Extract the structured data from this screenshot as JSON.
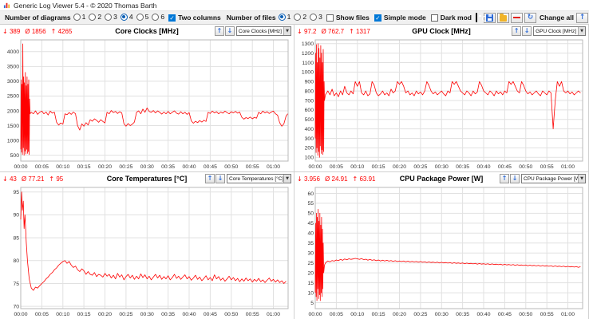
{
  "window": {
    "title": "Generic Log Viewer 5.4  -  © 2020 Thomas Barth"
  },
  "icons": {
    "min": "↓",
    "avg": "Ø",
    "max": "↑",
    "up": "↑",
    "down": "↓",
    "dropdown": "▼",
    "refresh": "↻",
    "check": "✓"
  },
  "colors": {
    "accent_blue": "#2e6bd6",
    "checkbox_blue": "#0078d7",
    "series_red": "#fe0000"
  },
  "toolbar": {
    "diagrams_label": "Number of diagrams",
    "diagram_options": [
      "1",
      "2",
      "3",
      "4",
      "5",
      "6"
    ],
    "diagrams_selected": "4",
    "two_columns": true,
    "two_columns_label": "Two columns",
    "files_label": "Number of files",
    "file_options": [
      "1",
      "2",
      "3"
    ],
    "files_selected": "1",
    "show_files": false,
    "show_files_label": "Show files",
    "simple_mode": true,
    "simple_mode_label": "Simple mode",
    "dark_mode": false,
    "dark_mode_label": "Dark mod",
    "change_all_label": "Change all"
  },
  "time_axis": {
    "ticks": [
      0,
      5,
      10,
      15,
      20,
      25,
      30,
      35,
      40,
      45,
      50,
      55,
      60
    ],
    "labels": [
      "00:00",
      "00:05",
      "00:10",
      "00:15",
      "00:20",
      "00:25",
      "00:30",
      "00:35",
      "00:40",
      "00:45",
      "00:50",
      "00:55",
      "01:00"
    ]
  },
  "chart_data": [
    {
      "type": "line",
      "title": "Core Clocks [MHz]",
      "selector": "Core Clocks [MHz]",
      "stats": {
        "min": "389",
        "avg": "1856",
        "max": "4265"
      },
      "color": "#fe0000",
      "ylim": [
        300,
        4400
      ],
      "yticks": [
        500,
        1000,
        1500,
        2000,
        2500,
        3000,
        3500,
        4000
      ],
      "xlim": [
        0,
        63.5
      ],
      "points": [
        0,
        700,
        0.1,
        3050,
        0.2,
        600,
        0.3,
        2900,
        0.4,
        520,
        0.5,
        4265,
        0.6,
        750,
        0.7,
        3150,
        0.8,
        500,
        0.9,
        2950,
        1,
        640,
        1.1,
        3300,
        1.2,
        540,
        1.3,
        2850,
        1.4,
        700,
        1.5,
        3150,
        1.6,
        560,
        1.7,
        2900,
        1.8,
        620,
        1.9,
        3050,
        2,
        520,
        2.1,
        2400,
        2.2,
        1900,
        2.5,
        1950,
        3,
        1900,
        3.5,
        2000,
        4,
        1880,
        4.5,
        1950,
        5,
        1990,
        5.5,
        1900,
        6,
        1960,
        6.5,
        1860,
        7,
        1990,
        7.5,
        1920,
        8,
        1950,
        8.5,
        1620,
        9,
        1520,
        9.5,
        1590,
        10,
        1550,
        10.5,
        1900,
        11,
        1870,
        11.5,
        1940,
        12,
        1880,
        12.5,
        1960,
        13,
        1900,
        13.5,
        1500,
        14,
        1350,
        14.5,
        1560,
        15,
        1480,
        15.5,
        1600,
        16,
        1520,
        16.5,
        1700,
        17,
        1650,
        17.5,
        1730,
        18,
        1680,
        18.5,
        1610,
        19,
        1700,
        19.5,
        1640,
        20,
        1590,
        20.5,
        1950,
        21,
        1900,
        21.5,
        2010,
        22,
        1940,
        22.5,
        1980,
        23,
        1910,
        23.5,
        1970,
        24,
        1930,
        24.5,
        1560,
        25,
        1480,
        25.5,
        1570,
        26,
        1500,
        26.5,
        1550,
        27,
        1620,
        27.5,
        1950,
        28,
        2000,
        28.5,
        1900,
        29,
        2060,
        29.5,
        1950,
        30,
        2100,
        30.5,
        1980,
        31,
        1950,
        31.5,
        2010,
        32,
        1930,
        32.5,
        2000,
        33,
        1950,
        33.5,
        1890,
        34,
        1960,
        34.5,
        1900,
        35,
        1980,
        35.5,
        1900,
        36,
        1950,
        36.5,
        2000,
        37,
        1920,
        37.5,
        1890,
        38,
        1970,
        38.5,
        1900,
        39,
        1950,
        39.5,
        1880,
        40,
        1940,
        40.5,
        1660,
        41,
        1580,
        41.5,
        1650,
        42,
        1600,
        42.5,
        1670,
        43,
        1620,
        43.5,
        1680,
        44,
        1640,
        44.5,
        1950,
        45,
        1910,
        45.5,
        1990,
        46,
        1930,
        46.5,
        1970,
        47,
        1900,
        47.5,
        1960,
        48,
        1920,
        48.5,
        1990,
        49,
        1940,
        49.5,
        1900,
        50,
        1970,
        50.5,
        1930,
        51,
        1980,
        51.5,
        1920,
        52,
        1960,
        52.5,
        1780,
        53,
        1720,
        53.5,
        1770,
        54,
        1740,
        54.5,
        1790,
        55,
        1730,
        55.5,
        1780,
        56,
        1750,
        56.5,
        1950,
        57,
        1900,
        57.5,
        1990,
        58,
        1930,
        58.5,
        1970,
        59,
        1910,
        59.5,
        1960,
        60,
        1990,
        60.5,
        1900,
        61,
        1850,
        61.5,
        1600,
        62,
        1480,
        62.5,
        1560,
        63,
        1820,
        63.4,
        1900
      ]
    },
    {
      "type": "line",
      "title": "GPU Clock [MHz]",
      "selector": "GPU Clock [MHz]",
      "stats": {
        "min": "97.2",
        "avg": "762.7",
        "max": "1317"
      },
      "color": "#fe0000",
      "ylim": [
        60,
        1340
      ],
      "yticks": [
        100,
        200,
        300,
        400,
        500,
        600,
        700,
        800,
        900,
        1000,
        1100,
        1200,
        1300
      ],
      "xlim": [
        0,
        63.5
      ],
      "points": [
        0,
        300,
        0.1,
        1200,
        0.2,
        150,
        0.3,
        1290,
        0.4,
        200,
        0.5,
        1100,
        0.6,
        120,
        0.7,
        1300,
        0.8,
        160,
        0.9,
        1250,
        1,
        100,
        1.1,
        1150,
        1.2,
        220,
        1.3,
        1280,
        1.4,
        140,
        1.5,
        1200,
        1.6,
        180,
        1.7,
        1100,
        1.8,
        130,
        1.9,
        1240,
        2,
        160,
        2.1,
        900,
        2.2,
        700,
        2.4,
        760,
        3,
        800,
        3.5,
        760,
        4,
        820,
        4.5,
        750,
        5,
        780,
        5.5,
        740,
        6,
        800,
        6.5,
        760,
        7,
        850,
        7.5,
        780,
        8,
        760,
        8.5,
        800,
        9,
        770,
        9.5,
        900,
        10,
        850,
        10.5,
        900,
        11,
        780,
        11.5,
        760,
        12,
        800,
        12.5,
        750,
        13,
        770,
        13.5,
        900,
        14,
        860,
        14.5,
        780,
        15,
        750,
        15.5,
        770,
        16,
        800,
        16.5,
        760,
        17,
        780,
        17.5,
        750,
        18,
        820,
        18.5,
        780,
        19,
        800,
        19.5,
        900,
        20,
        870,
        20.5,
        900,
        21,
        850,
        21.5,
        780,
        22,
        800,
        22.5,
        760,
        23,
        780,
        23.5,
        750,
        24,
        800,
        24.5,
        770,
        25,
        790,
        25.5,
        760,
        26,
        800,
        26.5,
        900,
        27,
        860,
        27.5,
        800,
        28,
        770,
        28.5,
        790,
        29,
        760,
        29.5,
        780,
        30,
        800,
        30.5,
        770,
        31,
        750,
        31.5,
        800,
        32,
        780,
        32.5,
        900,
        33,
        870,
        33.5,
        900,
        34,
        850,
        34.5,
        800,
        35,
        780,
        35.5,
        760,
        36,
        800,
        36.5,
        780,
        37,
        750,
        37.5,
        800,
        38,
        770,
        38.5,
        790,
        39,
        900,
        39.5,
        860,
        40,
        800,
        40.5,
        780,
        41,
        760,
        41.5,
        800,
        42,
        780,
        42.5,
        750,
        43,
        800,
        43.5,
        770,
        44,
        790,
        44.5,
        760,
        45,
        800,
        45.5,
        780,
        46,
        900,
        46.5,
        870,
        47,
        900,
        47.5,
        850,
        48,
        800,
        48.5,
        780,
        49,
        900,
        49.5,
        860,
        50,
        800,
        50.5,
        770,
        51,
        790,
        51.5,
        760,
        52,
        780,
        52.5,
        800,
        53,
        770,
        53.5,
        750,
        54,
        800,
        54.5,
        780,
        55,
        760,
        55.5,
        800,
        56,
        780,
        56.5,
        400,
        57,
        700,
        57.5,
        900,
        58,
        850,
        58.5,
        900,
        59,
        800,
        59.5,
        780,
        60,
        800,
        60.5,
        770,
        61,
        790,
        61.5,
        760,
        62,
        780,
        62.5,
        800,
        63,
        780
      ]
    },
    {
      "type": "line",
      "title": "Core Temperatures [°C]",
      "selector": "Core Temperatures [°C]",
      "stats": {
        "min": "43",
        "avg": "77.21",
        "max": "95"
      },
      "color": "#fe0000",
      "ylim": [
        69.5,
        96
      ],
      "yticks": [
        70,
        75,
        80,
        85,
        90,
        95
      ],
      "xlim": [
        0,
        63.5
      ],
      "points": [
        0,
        89,
        0.2,
        95,
        0.4,
        91,
        0.6,
        93,
        0.8,
        87,
        1,
        90,
        1.3,
        84,
        1.6,
        80,
        2,
        76,
        2.5,
        74,
        3,
        73.5,
        3.5,
        74.2,
        4,
        74,
        4.5,
        74.5,
        5,
        75,
        5.5,
        75.4,
        6,
        76,
        6.5,
        76.4,
        7,
        77,
        7.5,
        77.4,
        8,
        78,
        8.5,
        78.4,
        9,
        79,
        9.5,
        79.4,
        10,
        79.8,
        10.5,
        80,
        11,
        79.4,
        11.5,
        79.8,
        12,
        79,
        12.5,
        78.5,
        13,
        78.8,
        13.5,
        78,
        14,
        77.6,
        14.5,
        78.2,
        15,
        77.8,
        15.5,
        77,
        16,
        77.6,
        16.5,
        77,
        17,
        76.8,
        17.5,
        77.4,
        18,
        76.5,
        18.5,
        77,
        19,
        76.8,
        19.5,
        76.4,
        20,
        77.2,
        20.5,
        76.6,
        21,
        77,
        21.5,
        76.2,
        22,
        76.8,
        22.5,
        76,
        23,
        77.2,
        23.5,
        76.4,
        24,
        76.9,
        24.5,
        75.8,
        25,
        76.5,
        25.5,
        77,
        26,
        76.2,
        26.5,
        76.8,
        27,
        75.9,
        27.5,
        76.6,
        28,
        76,
        28.5,
        77.1,
        29,
        76.3,
        29.5,
        76.9,
        30,
        76,
        30.5,
        76.6,
        31,
        75.8,
        31.5,
        76.4,
        32,
        77,
        32.5,
        76.2,
        33,
        76.8,
        33.5,
        75.9,
        34,
        76.5,
        34.5,
        76,
        35,
        76.7,
        35.5,
        75.8,
        36,
        76.3,
        36.5,
        77,
        37,
        76.1,
        37.5,
        76.6,
        38,
        75.9,
        38.5,
        76.4,
        39,
        76.9,
        39.5,
        76,
        40,
        76.5,
        40.5,
        75.7,
        41,
        76.2,
        41.5,
        76.8,
        42,
        75.9,
        42.5,
        76.4,
        43,
        75.6,
        43.5,
        76.1,
        44,
        76.7,
        44.5,
        75.8,
        45,
        76.3,
        45.5,
        75.6,
        46,
        76.9,
        46.5,
        76,
        47,
        76.5,
        47.5,
        75.7,
        48,
        76.2,
        48.5,
        75.5,
        49,
        76,
        49.5,
        76.6,
        50,
        75.8,
        50.5,
        76.3,
        51,
        75.6,
        51.5,
        76.1,
        52,
        75.4,
        52.5,
        76,
        53,
        75.5,
        53.5,
        76.2,
        54,
        75.6,
        54.5,
        76,
        55,
        75.3,
        55.5,
        75.9,
        56,
        75.5,
        56.5,
        76.1,
        57,
        75.4,
        57.5,
        75.8,
        58,
        75.2,
        58.5,
        75.7,
        59,
        76.2,
        59.5,
        75.5,
        60,
        75.9,
        60.5,
        75.3,
        61,
        75.8,
        61.5,
        75.2,
        62,
        75.6,
        62.5,
        75,
        63,
        75.5
      ]
    },
    {
      "type": "line",
      "title": "CPU Package Power [W]",
      "selector": "CPU Package Power [W]",
      "stats": {
        "min": "3.956",
        "avg": "24.91",
        "max": "63.91"
      },
      "color": "#fe0000",
      "ylim": [
        2,
        63
      ],
      "yticks": [
        5,
        10,
        15,
        20,
        25,
        30,
        35,
        40,
        45,
        50,
        55,
        60
      ],
      "xlim": [
        0,
        63.5
      ],
      "points": [
        0,
        10,
        0.1,
        45,
        0.2,
        8,
        0.3,
        50,
        0.4,
        6,
        0.5,
        48,
        0.6,
        12,
        0.7,
        52,
        0.8,
        7,
        0.9,
        46,
        1,
        9,
        1.1,
        50,
        1.2,
        6,
        1.3,
        44,
        1.4,
        10,
        1.5,
        48,
        1.6,
        8,
        1.7,
        42,
        1.8,
        12,
        1.9,
        35,
        2,
        20,
        2.2,
        24,
        2.5,
        25.2,
        3,
        26,
        3.5,
        25.6,
        4,
        26.2,
        4.5,
        25.9,
        5,
        26.5,
        5.5,
        26.1,
        6,
        26.8,
        6.5,
        26.3,
        7,
        27,
        7.5,
        26.6,
        8,
        27.1,
        8.5,
        26.8,
        9,
        27,
        9.5,
        27.3,
        10,
        27.1,
        10.5,
        26.8,
        11,
        27.2,
        11.5,
        26.6,
        12,
        26.9,
        12.5,
        26.4,
        13,
        26.8,
        13.5,
        26.3,
        14,
        26.6,
        14.5,
        26.1,
        15,
        26.5,
        15.5,
        26,
        16,
        26.4,
        16.5,
        26,
        17,
        26.3,
        17.5,
        25.9,
        18,
        26.2,
        18.5,
        25.8,
        19,
        26.1,
        19.5,
        25.7,
        20,
        26,
        20.5,
        25.7,
        21,
        26,
        21.5,
        25.6,
        22,
        25.9,
        22.5,
        25.5,
        23,
        25.8,
        23.5,
        25.5,
        24,
        25.7,
        24.5,
        25.4,
        25,
        25.7,
        25.5,
        25.3,
        26,
        25.6,
        26.5,
        25.2,
        27,
        25.5,
        27.5,
        25.2,
        28,
        25.4,
        28.5,
        25.1,
        29,
        25.4,
        29.5,
        25,
        30,
        25.3,
        30.5,
        25,
        31,
        25.2,
        31.5,
        24.9,
        32,
        25.2,
        32.5,
        24.8,
        33,
        25.1,
        33.5,
        24.8,
        34,
        25,
        34.5,
        24.7,
        35,
        25,
        35.5,
        24.6,
        36,
        24.9,
        36.5,
        24.6,
        37,
        24.8,
        37.5,
        24.5,
        38,
        24.8,
        38.5,
        24.4,
        39,
        24.7,
        39.5,
        24.4,
        40,
        24.6,
        40.5,
        24.3,
        41,
        24.6,
        41.5,
        24.2,
        42,
        24.5,
        42.5,
        24.2,
        43,
        24.4,
        43.5,
        24.1,
        44,
        24.4,
        44.5,
        24,
        45,
        24.3,
        45.5,
        24,
        46,
        24.2,
        46.5,
        23.9,
        47,
        24.2,
        47.5,
        23.8,
        48,
        24.1,
        48.5,
        23.8,
        49,
        24,
        49.5,
        23.7,
        50,
        24,
        50.5,
        23.6,
        51,
        23.9,
        51.5,
        23.6,
        52,
        23.8,
        52.5,
        23.5,
        53,
        23.8,
        53.5,
        23.4,
        54,
        23.7,
        54.5,
        23.4,
        55,
        23.6,
        55.5,
        23.3,
        56,
        23.6,
        56.5,
        23.2,
        57,
        23.5,
        57.5,
        23.2,
        58,
        23.4,
        58.5,
        23.1,
        59,
        23.4,
        59.5,
        23,
        60,
        23.3,
        60.5,
        23,
        61,
        23.2,
        61.5,
        22.9,
        62,
        23.2,
        62.5,
        22.8,
        63,
        23.1
      ]
    }
  ]
}
